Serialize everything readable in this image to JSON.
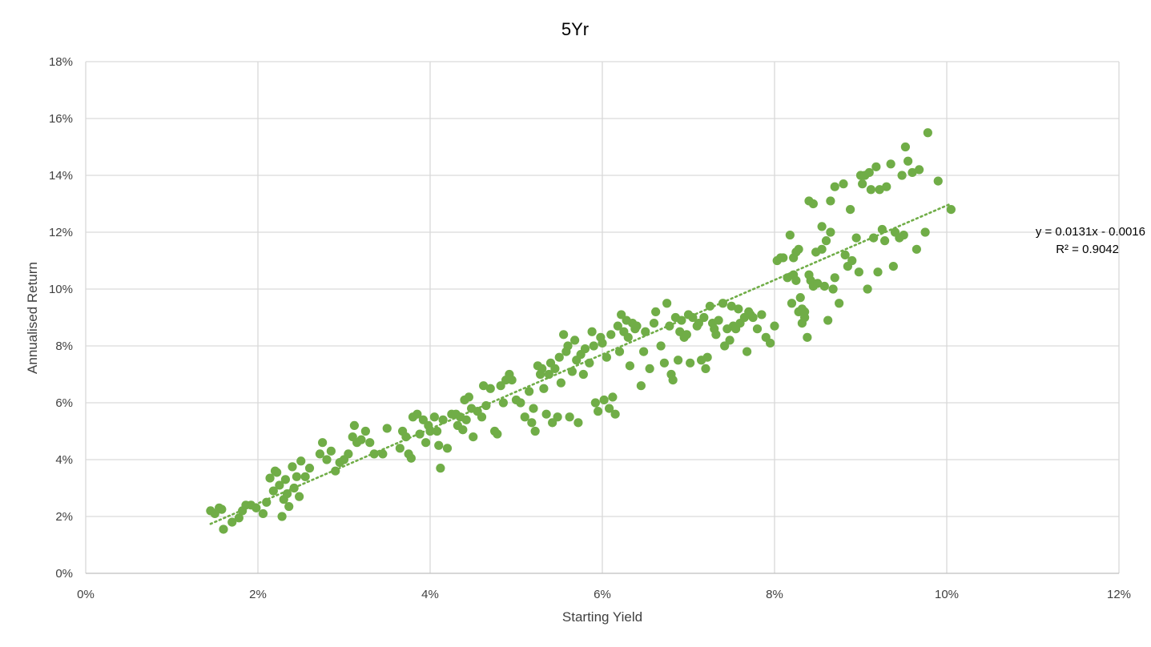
{
  "chart_data": {
    "type": "scatter",
    "title": "5Yr",
    "xlabel": "Starting Yield",
    "ylabel": "Annualised Return",
    "xlim": [
      0,
      0.12
    ],
    "ylim": [
      0,
      0.18
    ],
    "x_ticks": [
      0,
      0.02,
      0.04,
      0.06,
      0.08,
      0.1,
      0.12
    ],
    "x_tick_labels": [
      "0%",
      "2%",
      "4%",
      "6%",
      "8%",
      "10%",
      "12%"
    ],
    "y_ticks": [
      0,
      0.02,
      0.04,
      0.06,
      0.08,
      0.1,
      0.12,
      0.14,
      0.16,
      0.18
    ],
    "y_tick_labels": [
      "0%",
      "2%",
      "4%",
      "6%",
      "8%",
      "10%",
      "12%",
      "14%",
      "16%",
      "18%"
    ],
    "grid": true,
    "legend": false,
    "colors": {
      "points": "#70ad47",
      "trendline": "#70ad47",
      "grid": "#d9d9d9",
      "axis": "#bfbfbf"
    },
    "trendline": {
      "type": "linear",
      "slope": 0.0131,
      "intercept": -0.0016,
      "x_range": [
        0.0145,
        0.1005
      ],
      "equation_label": "y = 0.0131x - 0.0016",
      "r2_label": "R² = 0.9042"
    },
    "series": [
      {
        "points": [
          [
            0.0145,
            0.022
          ],
          [
            0.015,
            0.021
          ],
          [
            0.0155,
            0.023
          ],
          [
            0.0158,
            0.0225
          ],
          [
            0.016,
            0.0155
          ],
          [
            0.017,
            0.018
          ],
          [
            0.0178,
            0.0195
          ],
          [
            0.0182,
            0.022
          ],
          [
            0.0186,
            0.024
          ],
          [
            0.0192,
            0.024
          ],
          [
            0.0198,
            0.023
          ],
          [
            0.0206,
            0.021
          ],
          [
            0.021,
            0.025
          ],
          [
            0.0214,
            0.0335
          ],
          [
            0.0218,
            0.029
          ],
          [
            0.022,
            0.036
          ],
          [
            0.0222,
            0.0355
          ],
          [
            0.0225,
            0.031
          ],
          [
            0.0228,
            0.02
          ],
          [
            0.023,
            0.026
          ],
          [
            0.0232,
            0.033
          ],
          [
            0.0234,
            0.028
          ],
          [
            0.0236,
            0.0235
          ],
          [
            0.024,
            0.0375
          ],
          [
            0.0242,
            0.03
          ],
          [
            0.0245,
            0.034
          ],
          [
            0.0248,
            0.027
          ],
          [
            0.025,
            0.0395
          ],
          [
            0.0255,
            0.034
          ],
          [
            0.026,
            0.037
          ],
          [
            0.0272,
            0.042
          ],
          [
            0.0275,
            0.046
          ],
          [
            0.028,
            0.04
          ],
          [
            0.0285,
            0.043
          ],
          [
            0.029,
            0.036
          ],
          [
            0.0295,
            0.039
          ],
          [
            0.03,
            0.04
          ],
          [
            0.0305,
            0.042
          ],
          [
            0.031,
            0.048
          ],
          [
            0.0312,
            0.052
          ],
          [
            0.0315,
            0.046
          ],
          [
            0.032,
            0.047
          ],
          [
            0.0325,
            0.05
          ],
          [
            0.033,
            0.046
          ],
          [
            0.0335,
            0.042
          ],
          [
            0.0345,
            0.042
          ],
          [
            0.035,
            0.051
          ],
          [
            0.0365,
            0.044
          ],
          [
            0.0368,
            0.05
          ],
          [
            0.0372,
            0.048
          ],
          [
            0.0375,
            0.042
          ],
          [
            0.0378,
            0.0405
          ],
          [
            0.038,
            0.055
          ],
          [
            0.0385,
            0.056
          ],
          [
            0.0388,
            0.049
          ],
          [
            0.0392,
            0.054
          ],
          [
            0.0395,
            0.046
          ],
          [
            0.0398,
            0.052
          ],
          [
            0.04,
            0.05
          ],
          [
            0.0405,
            0.055
          ],
          [
            0.0408,
            0.05
          ],
          [
            0.041,
            0.045
          ],
          [
            0.0412,
            0.037
          ],
          [
            0.0415,
            0.054
          ],
          [
            0.042,
            0.044
          ],
          [
            0.0425,
            0.056
          ],
          [
            0.043,
            0.056
          ],
          [
            0.0432,
            0.052
          ],
          [
            0.0435,
            0.055
          ],
          [
            0.0438,
            0.0505
          ],
          [
            0.044,
            0.061
          ],
          [
            0.0442,
            0.054
          ],
          [
            0.0445,
            0.062
          ],
          [
            0.0448,
            0.058
          ],
          [
            0.045,
            0.048
          ],
          [
            0.0455,
            0.057
          ],
          [
            0.046,
            0.055
          ],
          [
            0.0462,
            0.066
          ],
          [
            0.0465,
            0.059
          ],
          [
            0.047,
            0.065
          ],
          [
            0.0475,
            0.05
          ],
          [
            0.0478,
            0.049
          ],
          [
            0.0482,
            0.066
          ],
          [
            0.0485,
            0.06
          ],
          [
            0.0488,
            0.068
          ],
          [
            0.0492,
            0.07
          ],
          [
            0.0495,
            0.068
          ],
          [
            0.05,
            0.061
          ],
          [
            0.0505,
            0.06
          ],
          [
            0.051,
            0.055
          ],
          [
            0.0515,
            0.064
          ],
          [
            0.0518,
            0.053
          ],
          [
            0.052,
            0.058
          ],
          [
            0.0522,
            0.05
          ],
          [
            0.0525,
            0.073
          ],
          [
            0.0528,
            0.07
          ],
          [
            0.053,
            0.072
          ],
          [
            0.0532,
            0.065
          ],
          [
            0.0535,
            0.056
          ],
          [
            0.0538,
            0.07
          ],
          [
            0.054,
            0.074
          ],
          [
            0.0542,
            0.053
          ],
          [
            0.0545,
            0.072
          ],
          [
            0.0548,
            0.055
          ],
          [
            0.055,
            0.076
          ],
          [
            0.0552,
            0.067
          ],
          [
            0.0555,
            0.084
          ],
          [
            0.0558,
            0.078
          ],
          [
            0.056,
            0.08
          ],
          [
            0.0562,
            0.055
          ],
          [
            0.0565,
            0.071
          ],
          [
            0.0568,
            0.082
          ],
          [
            0.057,
            0.075
          ],
          [
            0.0572,
            0.053
          ],
          [
            0.0575,
            0.077
          ],
          [
            0.0578,
            0.07
          ],
          [
            0.058,
            0.079
          ],
          [
            0.0585,
            0.074
          ],
          [
            0.0588,
            0.085
          ],
          [
            0.059,
            0.08
          ],
          [
            0.0592,
            0.06
          ],
          [
            0.0595,
            0.057
          ],
          [
            0.0598,
            0.083
          ],
          [
            0.06,
            0.081
          ],
          [
            0.0602,
            0.061
          ],
          [
            0.0605,
            0.076
          ],
          [
            0.0608,
            0.058
          ],
          [
            0.061,
            0.084
          ],
          [
            0.0612,
            0.062
          ],
          [
            0.0615,
            0.056
          ],
          [
            0.0618,
            0.087
          ],
          [
            0.062,
            0.078
          ],
          [
            0.0622,
            0.091
          ],
          [
            0.0625,
            0.085
          ],
          [
            0.0628,
            0.089
          ],
          [
            0.063,
            0.083
          ],
          [
            0.0632,
            0.073
          ],
          [
            0.0635,
            0.088
          ],
          [
            0.0638,
            0.086
          ],
          [
            0.064,
            0.087
          ],
          [
            0.0645,
            0.066
          ],
          [
            0.0648,
            0.078
          ],
          [
            0.065,
            0.085
          ],
          [
            0.0655,
            0.072
          ],
          [
            0.066,
            0.088
          ],
          [
            0.0662,
            0.092
          ],
          [
            0.0668,
            0.08
          ],
          [
            0.0672,
            0.074
          ],
          [
            0.0675,
            0.095
          ],
          [
            0.0678,
            0.087
          ],
          [
            0.068,
            0.07
          ],
          [
            0.0682,
            0.068
          ],
          [
            0.0685,
            0.09
          ],
          [
            0.0688,
            0.075
          ],
          [
            0.069,
            0.085
          ],
          [
            0.0692,
            0.089
          ],
          [
            0.0695,
            0.083
          ],
          [
            0.0698,
            0.084
          ],
          [
            0.07,
            0.091
          ],
          [
            0.0702,
            0.074
          ],
          [
            0.0705,
            0.09
          ],
          [
            0.071,
            0.087
          ],
          [
            0.0712,
            0.088
          ],
          [
            0.0715,
            0.075
          ],
          [
            0.0718,
            0.09
          ],
          [
            0.072,
            0.072
          ],
          [
            0.0722,
            0.076
          ],
          [
            0.0725,
            0.094
          ],
          [
            0.0728,
            0.088
          ],
          [
            0.073,
            0.086
          ],
          [
            0.0732,
            0.084
          ],
          [
            0.0735,
            0.089
          ],
          [
            0.074,
            0.095
          ],
          [
            0.0742,
            0.08
          ],
          [
            0.0745,
            0.086
          ],
          [
            0.0748,
            0.082
          ],
          [
            0.075,
            0.094
          ],
          [
            0.0752,
            0.087
          ],
          [
            0.0755,
            0.086
          ],
          [
            0.0758,
            0.093
          ],
          [
            0.076,
            0.088
          ],
          [
            0.0765,
            0.09
          ],
          [
            0.0768,
            0.078
          ],
          [
            0.077,
            0.092
          ],
          [
            0.0772,
            0.091
          ],
          [
            0.0775,
            0.09
          ],
          [
            0.078,
            0.086
          ],
          [
            0.0785,
            0.091
          ],
          [
            0.079,
            0.083
          ],
          [
            0.0795,
            0.081
          ],
          [
            0.08,
            0.087
          ],
          [
            0.0803,
            0.11
          ],
          [
            0.0807,
            0.111
          ],
          [
            0.081,
            0.111
          ],
          [
            0.0815,
            0.104
          ],
          [
            0.0818,
            0.119
          ],
          [
            0.0822,
            0.111
          ],
          [
            0.0825,
            0.113
          ],
          [
            0.0828,
            0.092
          ],
          [
            0.0832,
            0.088
          ],
          [
            0.0835,
            0.092
          ],
          [
            0.0838,
            0.083
          ],
          [
            0.082,
            0.095
          ],
          [
            0.0822,
            0.105
          ],
          [
            0.0825,
            0.103
          ],
          [
            0.0828,
            0.114
          ],
          [
            0.083,
            0.097
          ],
          [
            0.0832,
            0.093
          ],
          [
            0.0835,
            0.09
          ],
          [
            0.084,
            0.105
          ],
          [
            0.0842,
            0.103
          ],
          [
            0.0845,
            0.101
          ],
          [
            0.0848,
            0.113
          ],
          [
            0.085,
            0.102
          ],
          [
            0.0855,
            0.114
          ],
          [
            0.0858,
            0.101
          ],
          [
            0.086,
            0.117
          ],
          [
            0.0862,
            0.089
          ],
          [
            0.0865,
            0.12
          ],
          [
            0.0868,
            0.1
          ],
          [
            0.087,
            0.104
          ],
          [
            0.084,
            0.131
          ],
          [
            0.0845,
            0.13
          ],
          [
            0.0855,
            0.122
          ],
          [
            0.0865,
            0.131
          ],
          [
            0.087,
            0.136
          ],
          [
            0.0875,
            0.095
          ],
          [
            0.088,
            0.137
          ],
          [
            0.0882,
            0.112
          ],
          [
            0.0885,
            0.108
          ],
          [
            0.0888,
            0.128
          ],
          [
            0.089,
            0.11
          ],
          [
            0.0895,
            0.118
          ],
          [
            0.0898,
            0.106
          ],
          [
            0.09,
            0.14
          ],
          [
            0.0902,
            0.137
          ],
          [
            0.0905,
            0.14
          ],
          [
            0.0908,
            0.1
          ],
          [
            0.091,
            0.141
          ],
          [
            0.0912,
            0.135
          ],
          [
            0.0915,
            0.118
          ],
          [
            0.0918,
            0.143
          ],
          [
            0.092,
            0.106
          ],
          [
            0.0922,
            0.135
          ],
          [
            0.0925,
            0.121
          ],
          [
            0.0928,
            0.117
          ],
          [
            0.093,
            0.136
          ],
          [
            0.0935,
            0.144
          ],
          [
            0.0938,
            0.108
          ],
          [
            0.094,
            0.12
          ],
          [
            0.0945,
            0.118
          ],
          [
            0.095,
            0.119
          ],
          [
            0.0948,
            0.14
          ],
          [
            0.0952,
            0.15
          ],
          [
            0.0955,
            0.145
          ],
          [
            0.096,
            0.141
          ],
          [
            0.0965,
            0.114
          ],
          [
            0.0968,
            0.142
          ],
          [
            0.0975,
            0.12
          ],
          [
            0.0978,
            0.155
          ],
          [
            0.099,
            0.138
          ],
          [
            0.1005,
            0.128
          ]
        ]
      }
    ]
  }
}
